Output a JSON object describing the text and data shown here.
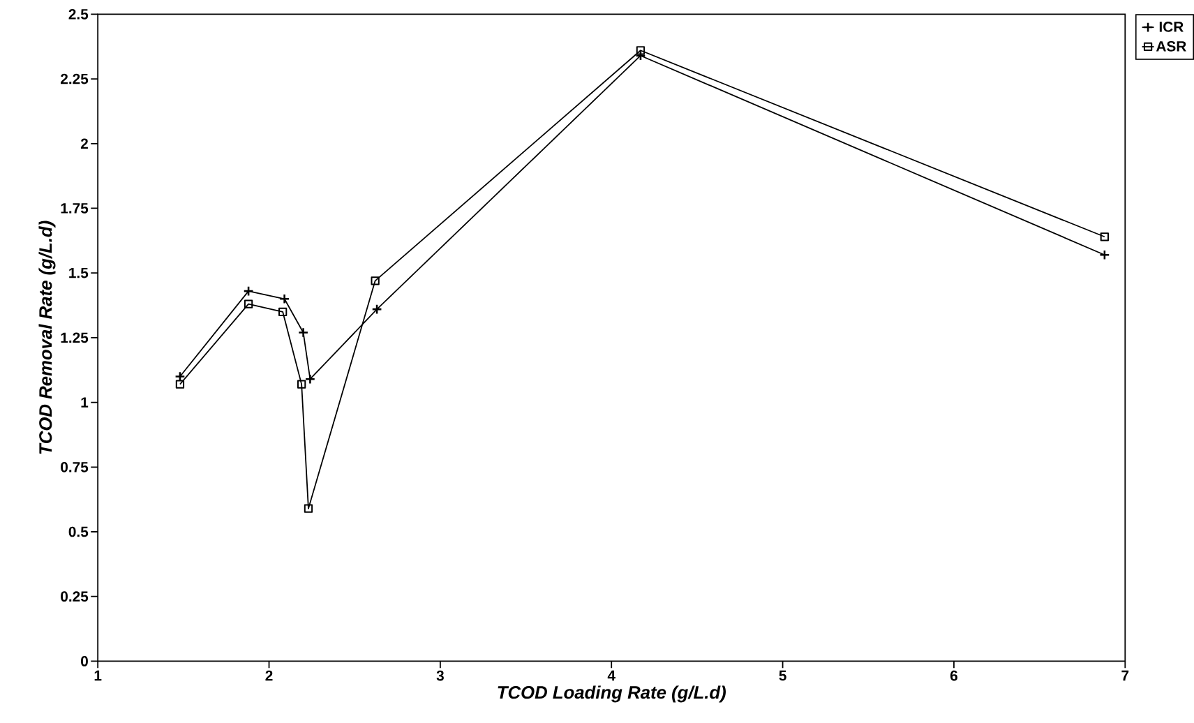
{
  "chart_data": {
    "type": "line",
    "xlabel": "TCOD Loading Rate (g/L.d)",
    "ylabel": "TCOD Removal Rate (g/L.d)",
    "xlim": [
      1,
      7
    ],
    "xticks": [
      1,
      2,
      3,
      4,
      5,
      6,
      7
    ],
    "ylim": [
      0,
      2.5
    ],
    "yticks": [
      0,
      0.25,
      0.5,
      0.75,
      1,
      1.25,
      1.5,
      1.75,
      2,
      2.25,
      2.5
    ],
    "grid": false,
    "legend": "top right",
    "line_style": "solid",
    "series": [
      {
        "name": "ICR",
        "color": "#000000",
        "marker": "cross",
        "x": [
          1.48,
          1.88,
          2.09,
          2.2,
          2.24,
          2.63,
          4.17,
          6.88
        ],
        "values": [
          1.1,
          1.43,
          1.4,
          1.27,
          1.09,
          1.36,
          2.34,
          1.57
        ]
      },
      {
        "name": "ASR",
        "color": "#000000",
        "marker": "square",
        "x": [
          1.48,
          1.88,
          2.08,
          2.19,
          2.23,
          2.62,
          4.17,
          6.88
        ],
        "values": [
          1.07,
          1.38,
          1.35,
          1.07,
          0.59,
          1.47,
          2.36,
          1.64
        ]
      }
    ]
  }
}
